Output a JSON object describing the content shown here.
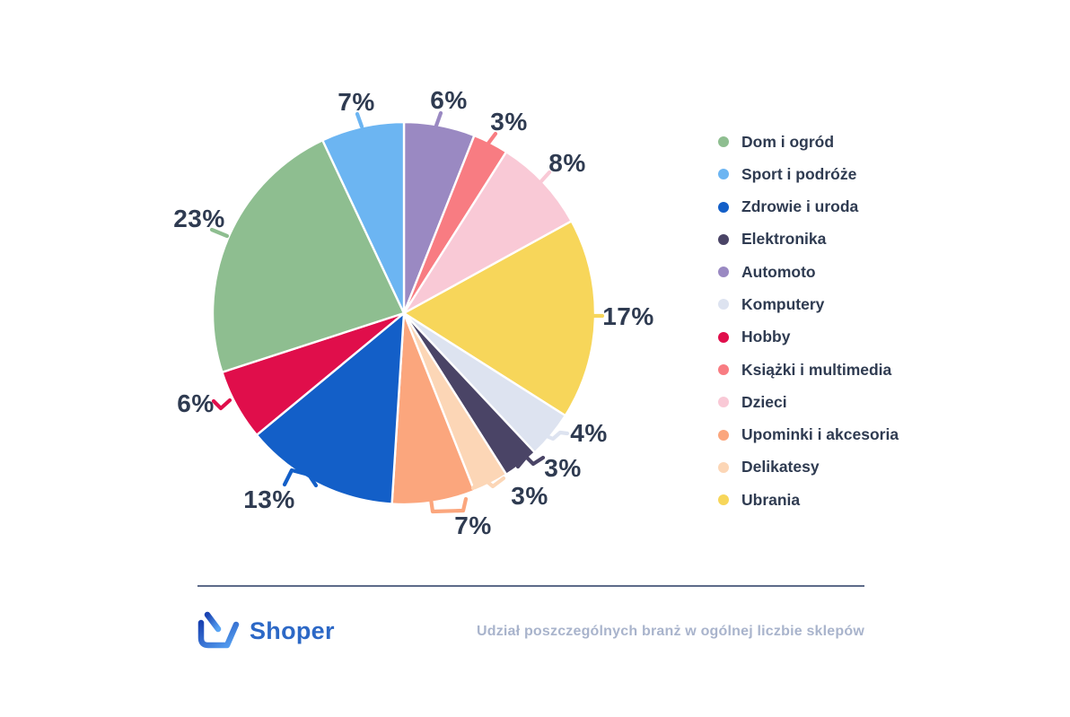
{
  "chart_data": {
    "type": "pie",
    "title": "",
    "unit": "%",
    "legend_position": "right",
    "start_angle_deg_from_top": 0,
    "direction": "clockwise",
    "categories": [
      {
        "label": "Dom i ogród",
        "value": 23,
        "percent_label": "23%",
        "color": "#8ebe90"
      },
      {
        "label": "Sport i podróże",
        "value": 7,
        "percent_label": "7%",
        "color": "#6cb5f2"
      },
      {
        "label": "Zdrowie i uroda",
        "value": 13,
        "percent_label": "13%",
        "color": "#135fc8"
      },
      {
        "label": "Elektronika",
        "value": 3,
        "percent_label": "3%",
        "color": "#4a4466"
      },
      {
        "label": "Automoto",
        "value": 6,
        "percent_label": "6%",
        "color": "#9a89c2"
      },
      {
        "label": "Komputery",
        "value": 4,
        "percent_label": "4%",
        "color": "#dde3f0"
      },
      {
        "label": "Hobby",
        "value": 6,
        "percent_label": "6%",
        "color": "#e00e4b"
      },
      {
        "label": "Książki i multimedia",
        "value": 3,
        "percent_label": "3%",
        "color": "#f87c82"
      },
      {
        "label": "Dzieci",
        "value": 8,
        "percent_label": "8%",
        "color": "#f9c9d6"
      },
      {
        "label": "Upominki i akcesoria",
        "value": 7,
        "percent_label": "7%",
        "color": "#fba67d"
      },
      {
        "label": "Delikatesy",
        "value": 3,
        "percent_label": "3%",
        "color": "#fcd6b6"
      },
      {
        "label": "Ubrania",
        "value": 17,
        "percent_label": "17%",
        "color": "#f7d65a"
      }
    ],
    "clockwise_order": [
      "Automoto",
      "Książki i multimedia",
      "Dzieci",
      "Ubrania",
      "Komputery",
      "Elektronika",
      "Delikatesy",
      "Upominki i akcesoria",
      "Zdrowie i uroda",
      "Hobby",
      "Dom i ogród",
      "Sport i podróże"
    ]
  },
  "footer": {
    "brand": "Shoper",
    "caption": "Udział poszczególnych branż w ogólnej liczbie sklepów"
  },
  "colors": {
    "background": "#ffffff",
    "label_text": "#2f3b51",
    "legend_text": "#2f3b51",
    "caption_text": "#a9b4cc",
    "divider": "#5d6b89",
    "brand_blue": "#2c68c6",
    "slice_separator": "#ffffff"
  }
}
